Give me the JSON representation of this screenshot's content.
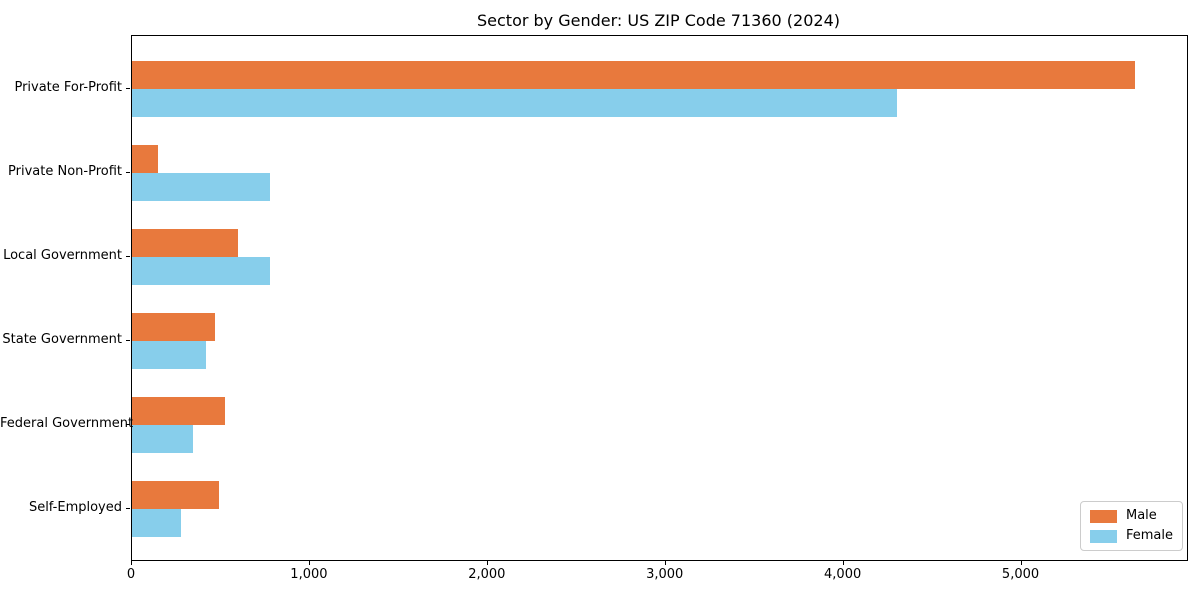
{
  "title": "Sector by Gender: US ZIP Code 71360 (2024)",
  "chart_data": {
    "type": "bar",
    "orientation": "horizontal",
    "title": "Sector by Gender: US ZIP Code 71360 (2024)",
    "categories": [
      "Private For-Profit",
      "Private Non-Profit",
      "Local Government",
      "State Government",
      "Federal Government",
      "Self-Employed"
    ],
    "series": [
      {
        "name": "Male",
        "color": "#e8793d",
        "values": [
          5640,
          145,
          595,
          465,
          520,
          490
        ]
      },
      {
        "name": "Female",
        "color": "#87ceeb",
        "values": [
          4300,
          775,
          775,
          415,
          345,
          275
        ]
      }
    ],
    "xlabel": "",
    "ylabel": "",
    "xlim": [
      0,
      5930
    ],
    "xticks": [
      0,
      1000,
      2000,
      3000,
      4000,
      5000
    ],
    "xtick_labels": [
      "0",
      "1,000",
      "2,000",
      "3,000",
      "4,000",
      "5,000"
    ],
    "legend": {
      "position": "lower right",
      "entries": [
        "Male",
        "Female"
      ]
    },
    "grid": false,
    "colors": {
      "axis": "#000000",
      "text": "#000000",
      "legend_border": "#cccccc",
      "background": "#ffffff"
    }
  }
}
